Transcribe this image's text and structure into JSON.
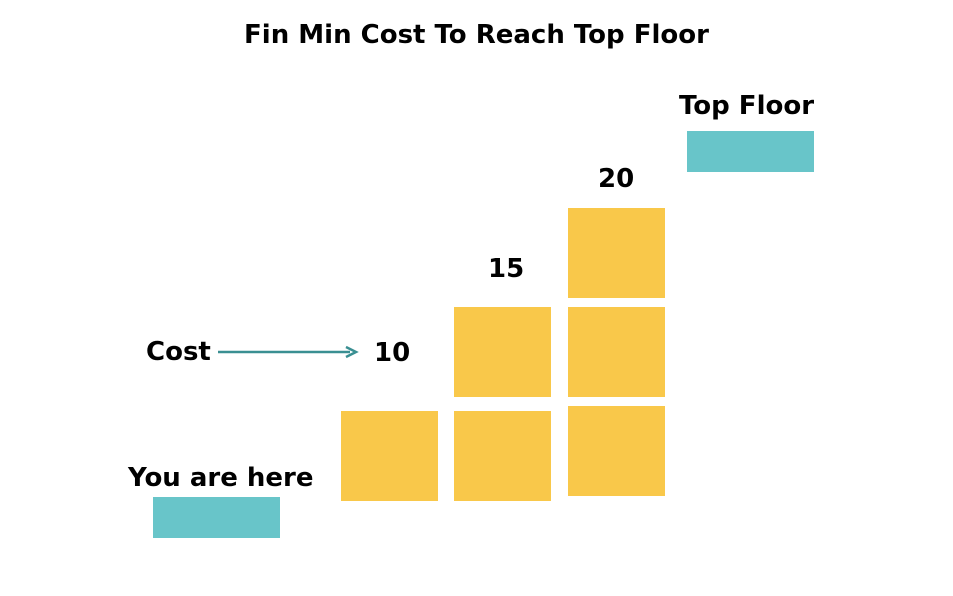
{
  "title": "Fin Min Cost To Reach Top Floor",
  "labels": {
    "top_floor": "Top Floor",
    "you_are_here": "You are here",
    "cost": "Cost"
  },
  "steps": [
    {
      "cost": "10",
      "blocks": 1
    },
    {
      "cost": "15",
      "blocks": 2
    },
    {
      "cost": "20",
      "blocks": 3
    }
  ],
  "colors": {
    "block": "#f9c84a",
    "floor": "#68c5c9",
    "arrow": "#3a8f92",
    "text": "#000000"
  }
}
